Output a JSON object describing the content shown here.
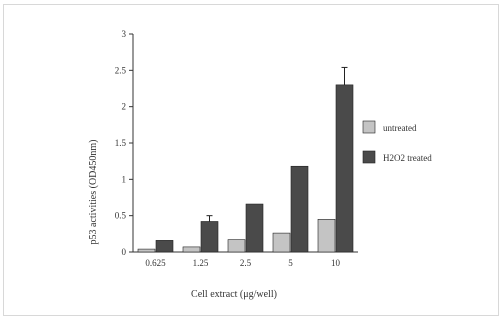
{
  "chart_data": {
    "type": "bar",
    "categories": [
      "0.625",
      "1.25",
      "2.5",
      "5",
      "10"
    ],
    "series": [
      {
        "name": "untreated",
        "values": [
          0.04,
          0.07,
          0.17,
          0.26,
          0.45
        ],
        "errors": [
          0,
          0,
          0,
          0,
          0
        ],
        "color": "#c4c4c4"
      },
      {
        "name": "H2O2 treated",
        "values": [
          0.16,
          0.42,
          0.66,
          1.18,
          2.3
        ],
        "errors": [
          0,
          0.08,
          0,
          0,
          0.24
        ],
        "color": "#4a4a4a"
      }
    ],
    "xlabel": "Cell extract (μg/well)",
    "ylabel": "p53 activities (OD450nm)",
    "ylim": [
      0,
      3
    ],
    "yticks": [
      {
        "v": 0,
        "label": "0"
      },
      {
        "v": 0.5,
        "label": "0.5"
      },
      {
        "v": 1,
        "label": "1"
      },
      {
        "v": 1.5,
        "label": "1.5"
      },
      {
        "v": 2,
        "label": "2"
      },
      {
        "v": 2.5,
        "label": "2.5"
      },
      {
        "v": 3,
        "label": "3"
      }
    ],
    "legend_position": "right",
    "grid": false
  }
}
